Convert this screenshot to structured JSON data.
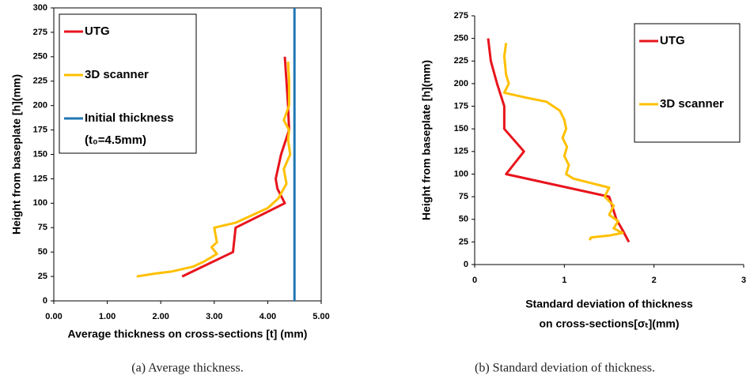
{
  "chart_data": [
    {
      "type": "line",
      "xlabel": "Average thickness on cross-sections [t] (mm)",
      "ylabel": "Height from baseplate [h](mm)",
      "caption": "(a) Average thickness.",
      "xlim": [
        0,
        5
      ],
      "xticks": [
        {
          "value": 0,
          "label": "0.00"
        },
        {
          "value": 1,
          "label": "1.00"
        },
        {
          "value": 2,
          "label": "2.00"
        },
        {
          "value": 3,
          "label": "3.00"
        },
        {
          "value": 4,
          "label": "4.00"
        },
        {
          "value": 5,
          "label": "5.00"
        }
      ],
      "ylim": [
        0,
        300
      ],
      "yticks": [
        0,
        25,
        50,
        75,
        100,
        125,
        150,
        175,
        200,
        225,
        250,
        275,
        300
      ],
      "grid": false,
      "frame": true,
      "legend": "upper left",
      "series": [
        {
          "name": "UTG",
          "color": "#e8141c",
          "x": [
            4.32,
            4.35,
            4.38,
            4.4,
            4.25,
            4.15,
            4.18,
            4.32,
            3.88,
            3.4,
            3.35,
            2.4
          ],
          "values": [
            250,
            225,
            200,
            175,
            150,
            125,
            115,
            100,
            88,
            75,
            50,
            25
          ]
        },
        {
          "name": "3D scanner",
          "color": "#ffc000",
          "x": [
            4.38,
            4.4,
            4.4,
            4.3,
            4.4,
            4.38,
            4.42,
            4.3,
            4.35,
            4.2,
            4.0,
            3.6,
            3.4,
            3.0,
            3.05,
            2.95,
            3.05,
            2.8,
            2.6,
            2.2,
            1.9,
            1.55
          ],
          "values": [
            245,
            225,
            200,
            185,
            175,
            165,
            150,
            135,
            120,
            105,
            95,
            85,
            80,
            75,
            60,
            55,
            48,
            40,
            35,
            30,
            28,
            25
          ]
        },
        {
          "name": [
            "Initial thickness",
            "(t₀=4.5mm)"
          ],
          "color": "#1f77b4",
          "x": [
            4.5,
            4.5
          ],
          "values": [
            0,
            300
          ]
        }
      ]
    },
    {
      "type": "line",
      "xlabel": [
        "Standard deviation of thickness",
        "on cross-sections[σₜ](mm)"
      ],
      "ylabel": "Height from baseplate [h](mm)",
      "caption": "(b) Standard deviation of thickness.",
      "xlim": [
        0,
        3
      ],
      "xticks": [
        0,
        1,
        2,
        3
      ],
      "ylim": [
        0,
        275
      ],
      "yticks": [
        0,
        25,
        50,
        75,
        100,
        125,
        150,
        175,
        200,
        225,
        250,
        275
      ],
      "grid": false,
      "frame": false,
      "legend": "upper right",
      "series": [
        {
          "name": "UTG",
          "color": "#e8141c",
          "x": [
            0.15,
            0.18,
            0.25,
            0.33,
            0.33,
            0.55,
            0.35,
            1.5,
            1.58,
            1.65,
            1.72
          ],
          "values": [
            250,
            225,
            200,
            175,
            150,
            125,
            100,
            75,
            50,
            38,
            25
          ]
        },
        {
          "name": "3D scanner",
          "color": "#ffc000",
          "x": [
            0.35,
            0.33,
            0.35,
            0.38,
            0.33,
            0.55,
            0.8,
            0.95,
            1.0,
            1.02,
            0.98,
            1.03,
            1.0,
            1.05,
            1.02,
            1.1,
            1.5,
            1.45,
            1.55,
            1.5,
            1.6,
            1.55,
            1.65,
            1.5,
            1.3,
            1.28
          ],
          "values": [
            245,
            230,
            210,
            200,
            190,
            185,
            180,
            170,
            160,
            150,
            140,
            130,
            120,
            110,
            100,
            95,
            85,
            75,
            65,
            55,
            48,
            40,
            35,
            32,
            30,
            27
          ]
        }
      ]
    }
  ]
}
